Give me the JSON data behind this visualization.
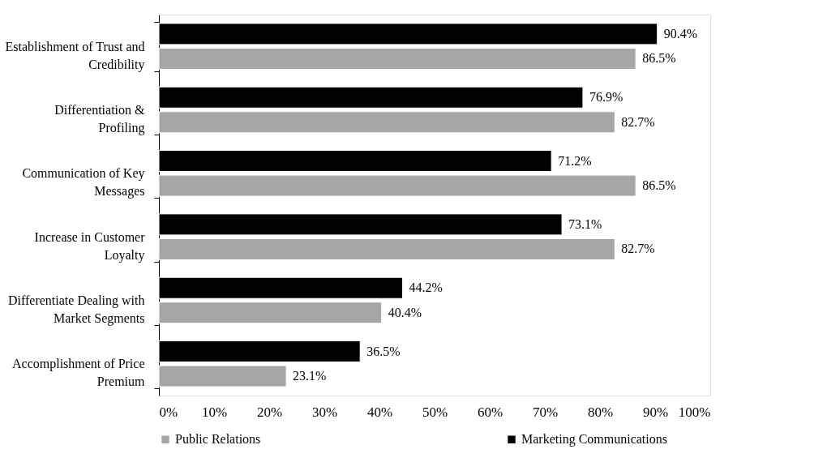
{
  "chart_data": {
    "type": "bar",
    "orientation": "horizontal",
    "categories": [
      "Establishment of Trust and Credibility",
      "Differentiation & Profiling",
      "Communication of Key Messages",
      "Increase in Customer Loyalty",
      "Differentiate Dealing with Market Segments",
      "Accomplishment of Price Premium"
    ],
    "series": [
      {
        "name": "Public Relations",
        "color": "#a6a6a6",
        "values": [
          86.5,
          82.7,
          86.5,
          82.7,
          40.4,
          23.1
        ],
        "value_labels": [
          "86.5%",
          "82.7%",
          "86.5%",
          "82.7%",
          "40.4%",
          "23.1%"
        ]
      },
      {
        "name": "Marketing Communications",
        "color": "#000000",
        "values": [
          90.4,
          76.9,
          71.2,
          73.1,
          44.2,
          36.5
        ],
        "value_labels": [
          "90.4%",
          "76.9%",
          "71.2%",
          "73.1%",
          "44.2%",
          "36.5%"
        ]
      }
    ],
    "xlim": [
      0,
      100
    ],
    "xticks": [
      {
        "value": 0,
        "label": "0%"
      },
      {
        "value": 10,
        "label": "10%"
      },
      {
        "value": 20,
        "label": "20%"
      },
      {
        "value": 30,
        "label": "30%"
      },
      {
        "value": 40,
        "label": "40%"
      },
      {
        "value": 50,
        "label": "50%"
      },
      {
        "value": 60,
        "label": "60%"
      },
      {
        "value": 70,
        "label": "70%"
      },
      {
        "value": 80,
        "label": "80%"
      },
      {
        "value": 90,
        "label": "90%"
      },
      {
        "value": 100,
        "label": "100%"
      }
    ],
    "grid": false,
    "legend": "bottom"
  }
}
